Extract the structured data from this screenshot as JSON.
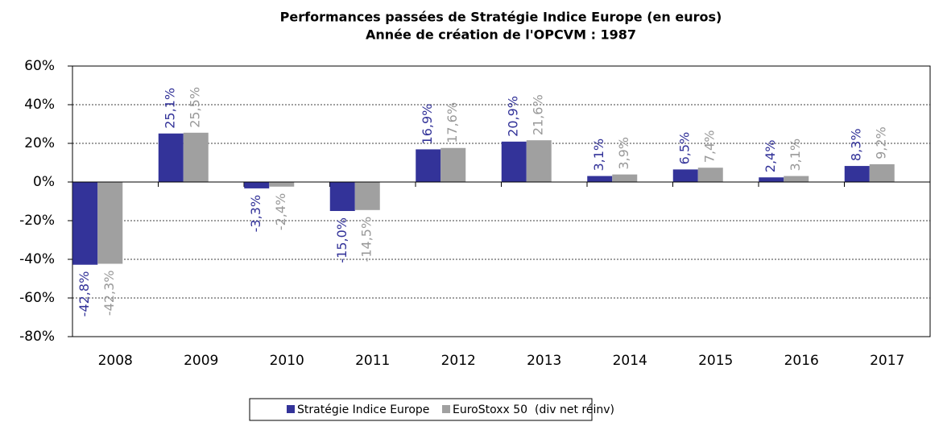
{
  "chart_data": {
    "type": "bar",
    "title": "Performances passées de Stratégie Indice Europe (en euros)",
    "subtitle": "Année de création de l'OPCVM : 1987",
    "categories": [
      "2008",
      "2009",
      "2010",
      "2011",
      "2012",
      "2013",
      "2014",
      "2015",
      "2016",
      "2017"
    ],
    "series": [
      {
        "name": "Stratégie Indice Europe",
        "color": "#333399",
        "values": [
          -42.8,
          25.1,
          -3.3,
          -15.0,
          16.9,
          20.9,
          3.1,
          6.5,
          2.4,
          8.3
        ],
        "value_labels": [
          "-42,8%",
          "25,1%",
          "-3,3%",
          "-15,0%",
          "16,9%",
          "20,9%",
          "3,1%",
          "6,5%",
          "2,4%",
          "8,3%"
        ]
      },
      {
        "name": "EuroStoxx 50  (div net réinv)",
        "color": "#a0a0a0",
        "values": [
          -42.3,
          25.5,
          -2.4,
          -14.5,
          17.6,
          21.6,
          3.9,
          7.4,
          3.1,
          9.2
        ],
        "value_labels": [
          "-42,3%",
          "25,5%",
          "-2,4%",
          "-14,5%",
          "17,6%",
          "21,6%",
          "3,9%",
          "7,4%",
          "3,1%",
          "9,2%"
        ]
      }
    ],
    "ylim": [
      -80,
      60
    ],
    "yticks": [
      {
        "value": -80,
        "label": "-80%"
      },
      {
        "value": -60,
        "label": "-60%"
      },
      {
        "value": -40,
        "label": "-40%"
      },
      {
        "value": -20,
        "label": "-20%"
      },
      {
        "value": 0,
        "label": "0%"
      },
      {
        "value": 20,
        "label": "20%"
      },
      {
        "value": 40,
        "label": "40%"
      },
      {
        "value": 60,
        "label": "60%"
      }
    ],
    "grid": true,
    "legend": "bottom"
  }
}
